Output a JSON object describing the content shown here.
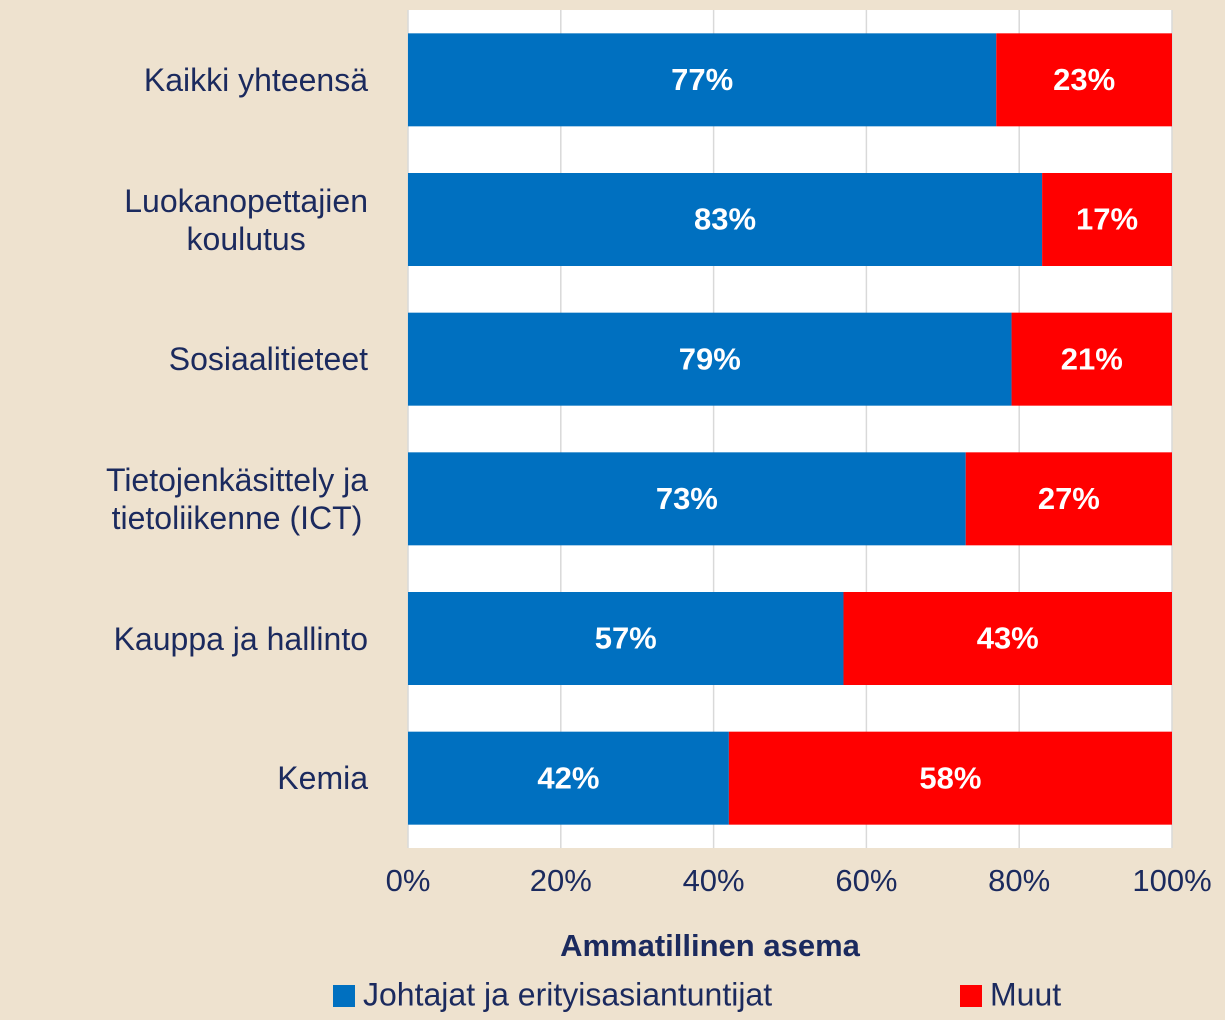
{
  "chart_data": {
    "type": "stacked_barh",
    "categories": [
      "Kaikki yhteensä",
      "Luokanopettajien\nkoulutus",
      "Sosiaalitieteet",
      "Tietojenkäsittely ja\ntietoliikenne (ICT)",
      "Kauppa ja hallinto",
      "Kemia"
    ],
    "series": [
      {
        "name": "Johtajat ja erityisasiantuntijat",
        "color": "#0070c0",
        "values": [
          77,
          83,
          79,
          73,
          57,
          42
        ],
        "value_labels": [
          "77%",
          "83%",
          "79%",
          "73%",
          "57%",
          "42%"
        ]
      },
      {
        "name": "Muut",
        "color": "#ff0000",
        "values": [
          23,
          17,
          21,
          27,
          43,
          58
        ],
        "value_labels": [
          "23%",
          "17%",
          "21%",
          "27%",
          "43%",
          "58%"
        ]
      }
    ],
    "xlabel": "Ammatillinen asema",
    "xlim": [
      0,
      100
    ],
    "xticks": [
      {
        "value": 0,
        "label": "0%"
      },
      {
        "value": 20,
        "label": "20%"
      },
      {
        "value": 40,
        "label": "40%"
      },
      {
        "value": 60,
        "label": "60%"
      },
      {
        "value": 80,
        "label": "80%"
      },
      {
        "value": 100,
        "label": "100%"
      }
    ],
    "grid": true,
    "legend": "bottom"
  }
}
